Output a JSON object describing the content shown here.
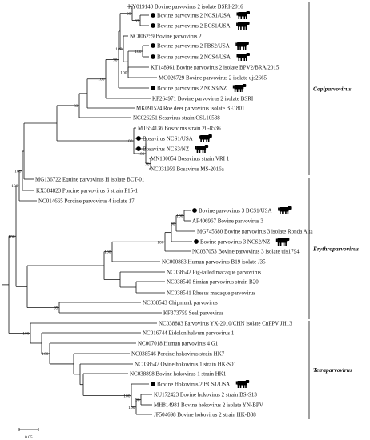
{
  "taxa": [
    {
      "id": "t0",
      "label": "KY019140 Bovine parvovirus 2 isolate BSRI-2016"
    },
    {
      "id": "t1",
      "label": "Bovine parvovirus 2 NCS1/USA",
      "marker": "circle",
      "cow": true
    },
    {
      "id": "t2",
      "label": "Bovine parvovirus 2 BCS1/USA",
      "marker": "circle",
      "cow": true
    },
    {
      "id": "t3",
      "label": "NC006259 Bovine parvovirus 2"
    },
    {
      "id": "t4",
      "label": "Bovine parvovirus 2 FBS2/USA",
      "marker": "circle",
      "cow": true
    },
    {
      "id": "t5",
      "label": "Bovine parvovirus 2 NCS4/USA",
      "marker": "circle",
      "cow": true
    },
    {
      "id": "t6",
      "label": "KT148961 Bovine parvovirus 2 isolate BPV2/BRA/2015"
    },
    {
      "id": "t7",
      "label": "MG026729 Bovine parvovirus 2 isolate ujs2665"
    },
    {
      "id": "t8",
      "label": "Bovine parvovirus 2 NCS3/NZ",
      "marker": "circle",
      "cow": true
    },
    {
      "id": "t9",
      "label": "KP264971 Bovine parvovirus 2 isolate BSRI"
    },
    {
      "id": "t10",
      "label": "MK091524 Roe deer parvovirus isolate BE1801"
    },
    {
      "id": "t11",
      "label": "NC026251 Sesavirus strain CSL10538"
    },
    {
      "id": "t12",
      "label": "MT654136 Bosavirus strain 20-8536"
    },
    {
      "id": "t13",
      "label": "Bosavirus NCS1/USA",
      "marker": "circle",
      "cow": true
    },
    {
      "id": "t14",
      "label": "Bosavirus NCS3/NZ",
      "marker": "circle",
      "cow": true
    },
    {
      "id": "t15",
      "label": "MN180054 Bosavirus strain VRI 1"
    },
    {
      "id": "t16",
      "label": "NC031959 Bosavirus MS-2016a"
    },
    {
      "id": "t17",
      "label": "MG136722 Equine parvovirus H isolate BCT-01"
    },
    {
      "id": "t18",
      "label": "KX384823 Porcine parvovirus 6 strain P15-1"
    },
    {
      "id": "t19",
      "label": "NC014665 Porcine parvovirus 4 isolate 17"
    },
    {
      "id": "t20",
      "label": "Bovine parvovirus 3 BCS1/USA",
      "marker": "circle",
      "cow": true
    },
    {
      "id": "t21",
      "label": "AF406967 Bovine parvovirus 3"
    },
    {
      "id": "t22",
      "label": "MG745680 Bovine parvovirus 3 isolate Ronda Alta"
    },
    {
      "id": "t23",
      "label": "Bovine parvovirus 3 NCS2/NZ",
      "marker": "circle",
      "cow": true
    },
    {
      "id": "t24",
      "label": "NC037053 Bovine parvovirus 3 isolate ujs1794"
    },
    {
      "id": "t25",
      "label": "NC000883 Human parvovirus B19 isolate J35"
    },
    {
      "id": "t26",
      "label": "NC038542 Pig-tailed macaque parvovirus"
    },
    {
      "id": "t27",
      "label": "NC038540 Simian parvovirus strain B20"
    },
    {
      "id": "t28",
      "label": "NC038541 Rhesus macaque parvovirus"
    },
    {
      "id": "t29",
      "label": "NC038543 Chipmunk parvovirus"
    },
    {
      "id": "t30",
      "label": "KF373759 Seal parvovirus"
    },
    {
      "id": "t31",
      "label": "NC038883 Parvovirus YX-2010/CHN isolate CnPPV JH13"
    },
    {
      "id": "t32",
      "label": "NC016744 Eidolon helvum parvovirus 1"
    },
    {
      "id": "t33",
      "label": "NC007018 Human parvovirus 4 G1"
    },
    {
      "id": "t34",
      "label": "NC038546 Porcine hokovirus strain HK7"
    },
    {
      "id": "t35",
      "label": "NC038547 Ovine hokovirus 1 strain HK-S01"
    },
    {
      "id": "t36",
      "label": "NC038898 Bovine hokovirus 1 strain HK1"
    },
    {
      "id": "t37",
      "label": "Bovine Hokovirus 2 BCS1/USA",
      "marker": "circle",
      "cow": true
    },
    {
      "id": "t38",
      "label": "KU172423 Bovine hokovirus 2 strain BS-S13"
    },
    {
      "id": "t39",
      "label": "MH814981 Bovine hokovirus 2 isolate YN-BPV"
    },
    {
      "id": "t40",
      "label": "JF504698 Bovine hokovirus 2 strain HK-B38"
    }
  ],
  "support_values": [
    {
      "id": "s95",
      "value": "95"
    },
    {
      "id": "s83a",
      "value": "83"
    },
    {
      "id": "s100a",
      "value": "100"
    },
    {
      "id": "s100b",
      "value": "100"
    },
    {
      "id": "s100c",
      "value": "100"
    },
    {
      "id": "s70",
      "value": "70"
    },
    {
      "id": "s100d",
      "value": "100"
    },
    {
      "id": "s83b",
      "value": "83"
    },
    {
      "id": "s100e",
      "value": "100"
    },
    {
      "id": "s100f",
      "value": "100"
    },
    {
      "id": "s76",
      "value": "76"
    },
    {
      "id": "s100g",
      "value": "100"
    },
    {
      "id": "s100h",
      "value": "100"
    },
    {
      "id": "s100i",
      "value": "100"
    },
    {
      "id": "s100j",
      "value": "100"
    },
    {
      "id": "s90",
      "value": "90"
    },
    {
      "id": "s100k",
      "value": "100"
    },
    {
      "id": "s100l",
      "value": "100"
    },
    {
      "id": "s99",
      "value": "99"
    },
    {
      "id": "s100m",
      "value": "100"
    },
    {
      "id": "s100n",
      "value": "100"
    },
    {
      "id": "s96",
      "value": "96"
    },
    {
      "id": "s100o",
      "value": "100"
    },
    {
      "id": "s100p",
      "value": "100"
    }
  ],
  "genera": [
    {
      "id": "g0",
      "name": "Copiparvovirus"
    },
    {
      "id": "g1",
      "name": "Erythroparvovirus"
    },
    {
      "id": "g2",
      "name": "Tetraparvovirus"
    }
  ],
  "scale_bar": {
    "label": "0.05"
  },
  "colors": {
    "line": "#111111",
    "text": "#111111",
    "marker": "#000000"
  },
  "icons": {
    "marker": "filled-circle",
    "host": "cow-icon"
  }
}
